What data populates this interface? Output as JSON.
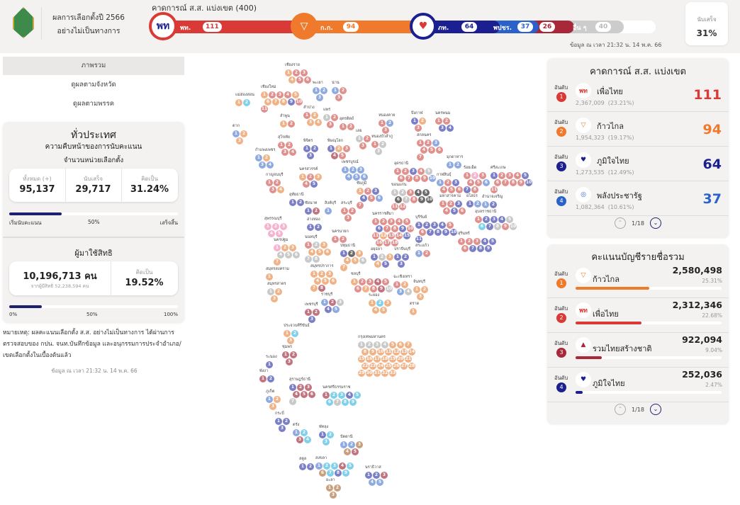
{
  "header": {
    "title_line1": "ผลการเลือกตั้งปี 2566",
    "title_line2": "อย่างไม่เป็นทางการ",
    "forecast_title": "คาดการณ์ ส.ส. แบ่งเขต (400)",
    "bar": [
      {
        "abbr": "พท.",
        "seats": "111",
        "color": "#d93a36"
      },
      {
        "abbr": "ก.ก.",
        "seats": "94",
        "color": "#f07a2c"
      },
      {
        "abbr": "ภท.",
        "seats": "64",
        "color": "#1b1f8f"
      },
      {
        "abbr": "พปชร.",
        "seats": "37",
        "color": "#2a62c9"
      },
      {
        "abbr": "",
        "seats": "26",
        "color": "#a8283a"
      },
      {
        "abbr": "อื่น ๆ",
        "seats": "40",
        "color": "#cccccc"
      }
    ],
    "timestamp": "ข้อมูล ณ เวลา 21:32 น. 14 พ.ค. 66",
    "counted_label": "นับเสร็จ",
    "counted_value": "31%"
  },
  "nav": [
    {
      "label": "ภาพรวม",
      "selected": true
    },
    {
      "label": "ดูผลตามจังหวัด"
    },
    {
      "label": "ดูผลตามพรรค"
    }
  ],
  "national": {
    "title": "ทั่วประเทศ",
    "subtitle": "ความคืบหน้าของการนับคะแนน",
    "units_title": "จำนวนหน่วยเลือกตั้ง",
    "total_label": "ทั้งหมด (+)",
    "total": "95,137",
    "counted_label": "นับเสร็จ",
    "counted": "29,717",
    "pct_label": "คิดเป็น",
    "pct": "31.24%",
    "progress": 31.24,
    "prog_start": "เริ่มนับคะแนน",
    "prog_mid": "50%",
    "prog_end": "เสร็จสิ้น",
    "turnout_title": "ผู้มาใช้สิทธิ",
    "turnout": "10,196,713 คน",
    "eligible": "จากผู้มีสิทธิ 52,238,594 คน",
    "turnout_pct_label": "คิดเป็น",
    "turnout_pct": "19.52%",
    "turnout_progress": 19.52,
    "t_start": "0%",
    "t_mid": "50%",
    "t_end": "100%"
  },
  "note": "หมายเหตุ: ผลคะแนนเลือกตั้ง ส.ส. อย่างไม่เป็นทางการ ได้ผ่านการตรวจสอบของ กปน. จนท.บันทึกข้อมูล และอนุกรรมการประจำอำเภอ/เขตเลือกตั้งในเบื้องต้นแล้ว",
  "note_timestamp": "ข้อมูล ณ เวลา 21:32 น. 14 พ.ค. 66",
  "constituency": {
    "title": "คาดการณ์ ส.ส. แบ่งเขต",
    "rank_label": "อันดับ",
    "page": "1/18",
    "items": [
      {
        "rank": "1",
        "name": "เพื่อไทย",
        "votes": "2,367,009",
        "pct": "(23.21%)",
        "seats": "111",
        "color": "#d93a36",
        "logo": "พท"
      },
      {
        "rank": "2",
        "name": "ก้าวไกล",
        "votes": "1,954,323",
        "pct": "(19.17%)",
        "seats": "94",
        "color": "#f07a2c",
        "logo": "▽"
      },
      {
        "rank": "3",
        "name": "ภูมิใจไทย",
        "votes": "1,273,535",
        "pct": "(12.49%)",
        "seats": "64",
        "color": "#1b1f8f",
        "logo": "♥"
      },
      {
        "rank": "4",
        "name": "พลังประชารัฐ",
        "votes": "1,082,364",
        "pct": "(10.61%)",
        "seats": "37",
        "color": "#2a62c9",
        "logo": "◎"
      }
    ]
  },
  "partylist": {
    "title": "คะแนนบัญชีรายชื่อรวม",
    "rank_label": "อันดับ",
    "page": "1/18",
    "items": [
      {
        "rank": "1",
        "name": "ก้าวไกล",
        "votes": "2,580,498",
        "pct": "25.31%",
        "share": 25.31,
        "color": "#f07a2c",
        "logo": "▽"
      },
      {
        "rank": "2",
        "name": "เพื่อไทย",
        "votes": "2,312,346",
        "pct": "22.68%",
        "share": 22.68,
        "color": "#d93a36",
        "logo": "พท"
      },
      {
        "rank": "3",
        "name": "รวมไทยสร้างชาติ",
        "votes": "922,094",
        "pct": "9.04%",
        "share": 9.04,
        "color": "#a8283a",
        "logo": "▲"
      },
      {
        "rank": "4",
        "name": "ภูมิใจไทย",
        "votes": "252,036",
        "pct": "2.47%",
        "share": 2.47,
        "color": "#1b1f8f",
        "logo": "♥"
      }
    ]
  },
  "map_colors": {
    "t": "#e0908d",
    "m": "#f0b287",
    "b": "#7b7fc6",
    "p": "#8eaae0",
    "r": "#c07480",
    "o": "#c9c9c9",
    "k": "#6b6b6b",
    "n": "#f4b3cf",
    "c": "#7fd0ea",
    "w": "#c9a07e"
  },
  "map": [
    {
      "name": "เชียงราย",
      "seats": "mttmtt"
    },
    {
      "name": "เชียงใหม่",
      "seats": "mtttmmmmbtt"
    },
    {
      "name": "แม่ฮ่องสอน",
      "seats": "mc"
    },
    {
      "name": "พะเยา",
      "seats": "ppp"
    },
    {
      "name": "น่าน",
      "seats": "ptt"
    },
    {
      "name": "ลำพูน",
      "seats": "mt"
    },
    {
      "name": "ลำปาง",
      "seats": "tmmm"
    },
    {
      "name": "แพร่",
      "seats": "ott"
    },
    {
      "name": "อุตรดิตถ์",
      "seats": "tt"
    },
    {
      "name": "ตาก",
      "seats": "pmm"
    },
    {
      "name": "สุโขทัย",
      "seats": "tttt"
    },
    {
      "name": "พิจิตร",
      "seats": "bbb"
    },
    {
      "name": "พิษณุโลก",
      "seats": "bmtrt"
    },
    {
      "name": "กำแพงเพชร",
      "seats": "pmpp"
    },
    {
      "name": "เพชรบูรณ์",
      "seats": "pppppp"
    },
    {
      "name": "นครสวรรค์",
      "seats": "mtmtb"
    },
    {
      "name": "กาญจนบุรี",
      "seats": "tttm"
    },
    {
      "name": "อุทัยธานี",
      "seats": "bb"
    },
    {
      "name": "เลย",
      "seats": "ott"
    },
    {
      "name": "หนองบัวลำภู",
      "seats": "too"
    },
    {
      "name": "หนองคาย",
      "seats": "tpt"
    },
    {
      "name": "บึงกาฬ",
      "seats": "bmt"
    },
    {
      "name": "สกลนคร",
      "seats": "ttptttt"
    },
    {
      "name": "นครพนม",
      "seats": "ttbb"
    },
    {
      "name": "อุดรธานี",
      "seats": "ttbtottttp"
    },
    {
      "name": "กาฬสินธุ์",
      "seats": "ptbttt"
    },
    {
      "name": "มุกดาหาร",
      "seats": "pp"
    },
    {
      "name": "ขอนแก่น",
      "seats": "ootkkkotkktt"
    },
    {
      "name": "ชัยภูมิ",
      "seats": "mtbbtpt"
    },
    {
      "name": "มหาสารคาม",
      "seats": "ttbtbt"
    },
    {
      "name": "ร้อยเอ็ด",
      "seats": "tntttpbt"
    },
    {
      "name": "ยโสธร",
      "seats": "bp"
    },
    {
      "name": "อำนาจเจริญ",
      "seats": "pb"
    },
    {
      "name": "นครราชสีมา",
      "seats": "tttttbttbttmttbttt"
    },
    {
      "name": "บุรีรัมย์",
      "seats": "bbbbttbbbbb"
    },
    {
      "name": "สุรินทร์",
      "seats": "tttbbtbbb"
    },
    {
      "name": "ศรีสะเกษ",
      "seats": "btttbttttbt"
    },
    {
      "name": "อุบลราชธานี",
      "seats": "tbbbocboto"
    },
    {
      "name": "ชัยนาท",
      "seats": "br"
    },
    {
      "name": "สิงห์บุรี",
      "seats": "p"
    },
    {
      "name": "สระบุรี",
      "seats": "ttt"
    },
    {
      "name": "อ่างทอง",
      "seats": "bb"
    },
    {
      "name": "สุพรรณบุรี",
      "seats": "nnnnn"
    },
    {
      "name": "นครนายก",
      "seats": "tt"
    },
    {
      "name": "นครปฐม",
      "seats": "nmmooom"
    },
    {
      "name": "นนทบุรี",
      "seats": "tommmmoo"
    },
    {
      "name": "ปทุมธานี",
      "seats": "bkmmmom"
    },
    {
      "name": "อยุธยา",
      "seats": "bommb"
    },
    {
      "name": "ปราจีนบุรี",
      "seats": "bbb"
    },
    {
      "name": "สระแก้ว",
      "seats": "pt"
    },
    {
      "name": "สมุทรปราการ",
      "seats": "mmmmmmmr"
    },
    {
      "name": "สมุทรสงคราม",
      "seats": "m"
    },
    {
      "name": "สมุทรสาคร",
      "seats": "omm"
    },
    {
      "name": "ราชบุรี",
      "seats": "probp"
    },
    {
      "name": "ชลบุรี",
      "seats": "mttrttmtro"
    },
    {
      "name": "ฉะเชิงเทรา",
      "seats": "tmpo"
    },
    {
      "name": "ระยอง",
      "seats": "mcmmm"
    },
    {
      "name": "จันทบุรี",
      "seats": "mmm"
    },
    {
      "name": "ตราด",
      "seats": "m"
    },
    {
      "name": "เพชรบุรี",
      "seats": "rrb"
    },
    {
      "name": "ประจวบคีรีขันธ์",
      "seats": "mcm"
    },
    {
      "name": "กรุงเทพมหานคร",
      "seats": "oooommmmmmmmmmmmmmmmmmmmmmmmmmmmm"
    },
    {
      "name": "ชุมพร",
      "seats": "rrr"
    },
    {
      "name": "ระนอง",
      "seats": "b"
    },
    {
      "name": "พังงา",
      "seats": "rb"
    },
    {
      "name": "สุราษฎร์ธานี",
      "seats": "brrrrro"
    },
    {
      "name": "ภูเก็ต",
      "seats": "pmm"
    },
    {
      "name": "นครศรีธรรมราช",
      "seats": "rccbccocc"
    },
    {
      "name": "กระบี่",
      "seats": "bbb"
    },
    {
      "name": "ตรัง",
      "seats": "pcrc"
    },
    {
      "name": "พัทลุง",
      "seats": "bcc"
    },
    {
      "name": "ปัตตานี",
      "seats": "ppwwr"
    },
    {
      "name": "สงขลา",
      "seats": "pccrcwcbc"
    },
    {
      "name": "สตูล",
      "seats": "bb"
    },
    {
      "name": "ยะลา",
      "seats": "www"
    },
    {
      "name": "นราธิวาส",
      "seats": "bbrpp"
    }
  ]
}
